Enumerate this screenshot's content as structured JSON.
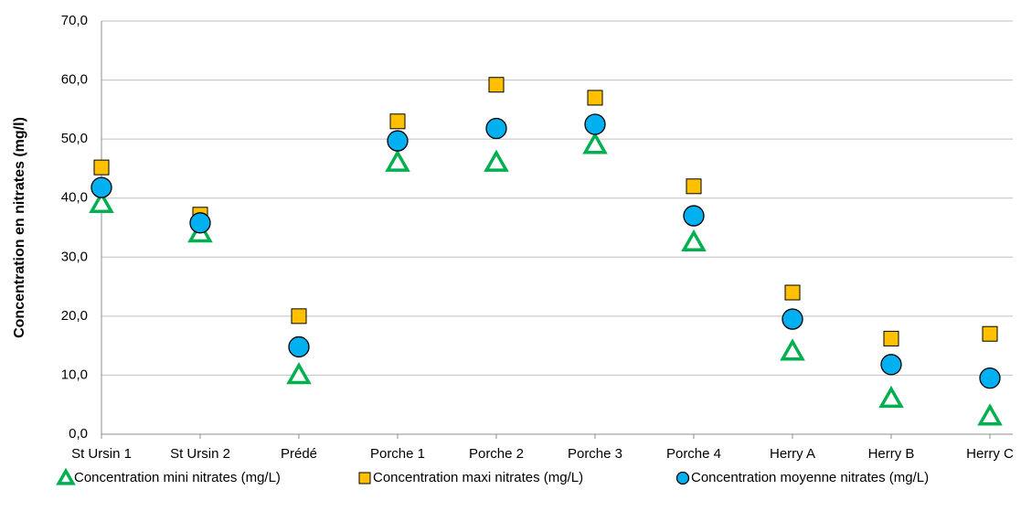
{
  "chart_data": {
    "type": "scatter",
    "ylabel": "Concentration en nitrates (mg/l)",
    "categories": [
      "St Ursin 1",
      "St Ursin 2",
      "Prédé",
      "Porche 1",
      "Porche 2",
      "Porche 3",
      "Porche 4",
      "Herry A",
      "Herry B",
      "Herry C"
    ],
    "series": [
      {
        "name": "Concentration mini nitrates (mg/L)",
        "color": "#00b050",
        "marker": "triangle",
        "values": [
          39,
          34,
          10,
          46,
          46,
          49,
          32.5,
          14,
          6,
          3
        ]
      },
      {
        "name": "Concentration maxi nitrates (mg/L)",
        "color": "#ffc000",
        "marker": "square",
        "values": [
          45.2,
          37.2,
          20,
          53,
          59.2,
          57,
          42,
          24,
          16.2,
          17
        ]
      },
      {
        "name": "Concentration moyenne nitrates (mg/L)",
        "color": "#00b0f0",
        "marker": "circle",
        "values": [
          41.8,
          35.8,
          14.8,
          49.7,
          51.8,
          52.5,
          37,
          19.5,
          11.8,
          9.5
        ]
      }
    ],
    "ylim": [
      0,
      70
    ],
    "yticks": [
      {
        "value": 0,
        "label": "0,0"
      },
      {
        "value": 10,
        "label": "10,0"
      },
      {
        "value": 20,
        "label": "20,0"
      },
      {
        "value": 30,
        "label": "30,0"
      },
      {
        "value": 40,
        "label": "40,0"
      },
      {
        "value": 50,
        "label": "50,0"
      },
      {
        "value": 60,
        "label": "60,0"
      },
      {
        "value": 70,
        "label": "70,0"
      }
    ],
    "grid": true,
    "legend": "bottom"
  }
}
